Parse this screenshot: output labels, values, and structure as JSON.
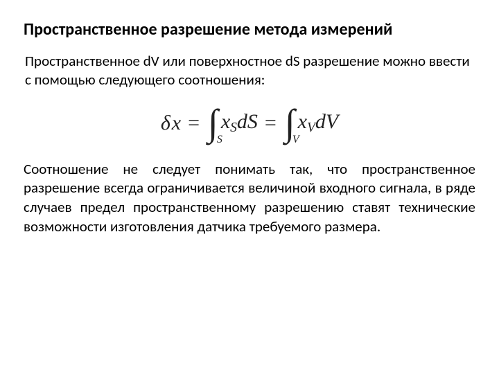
{
  "title": "Пространственное  разрешение  метода измерений",
  "intro": "Пространственное dV или поверхностное dS разрешение можно ввести с помощью следующего соотношения:",
  "formula": {
    "lhs_delta": "δ",
    "lhs_var": "x",
    "eq": "=",
    "int_symbol": "∫",
    "int1_sub": "S",
    "int1_var": "x",
    "int1_varsub": "S",
    "int1_diff": "dS",
    "int2_sub": "V",
    "int2_var": "x",
    "int2_varsub": "V",
    "int2_diff": "dV"
  },
  "body": "Соотношение не следует понимать так, что пространственное разрешение всегда ограничивается величиной входного сигнала, в ряде случаев предел пространственному разрешению ставят технические возможности изготовления датчика требуемого размера.",
  "colors": {
    "background": "#ffffff",
    "text": "#000000",
    "formula": "#222222"
  },
  "fontsizes": {
    "title": 24,
    "intro": 21,
    "body": 21,
    "formula": 30,
    "integral": 54,
    "sub": 16
  }
}
